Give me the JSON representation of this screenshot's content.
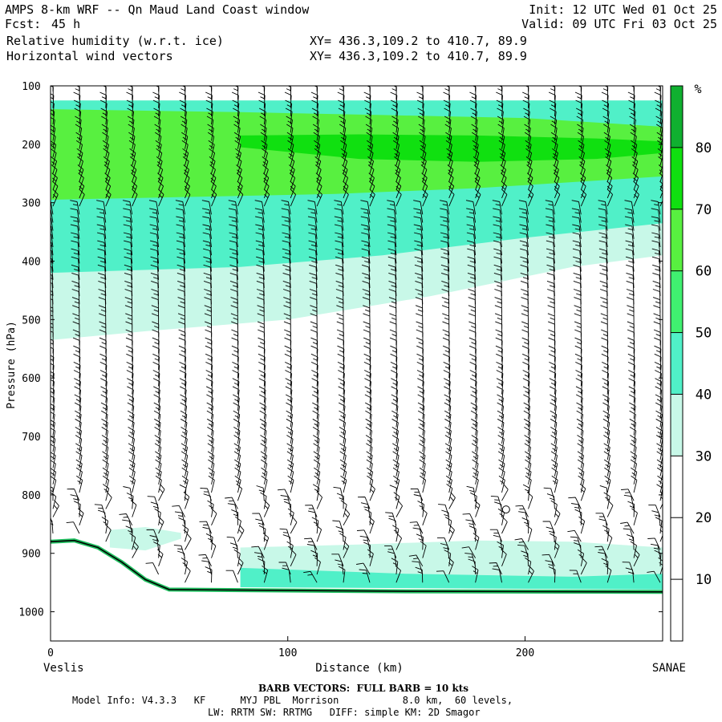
{
  "header": {
    "model_window": "AMPS 8-km WRF -- Qn Maud Land Coast window",
    "fcst_label": "Fcst:",
    "fcst_value": "45 h",
    "init": "Init: 12 UTC Wed 01 Oct 25",
    "valid": "Valid: 09 UTC Fri 03 Oct 25",
    "field1": "Relative humidity (w.r.t. ice)",
    "field2": "Horizontal wind vectors",
    "xy1": "XY= 436.3,109.2 to 410.7, 89.9",
    "xy2": "XY= 436.3,109.2 to 410.7, 89.9"
  },
  "footer": {
    "barb_note": "BARB VECTORS:  FULL BARB = 10 kts",
    "model_info": "Model Info: V4.3.3   KF      MYJ PBL  Morrison           8.0 km,  60 levels,",
    "physics": "LW: RRTM SW: RRTMG   DIFF: simple KM: 2D Smagor"
  },
  "chart_data": {
    "type": "heatmap",
    "xlabel": "Distance (km)",
    "ylabel": "Pressure (hPa)",
    "xlim": [
      0,
      258
    ],
    "ylim": [
      1050,
      100
    ],
    "x_ticks": [
      0,
      100,
      200
    ],
    "y_ticks": [
      100,
      200,
      300,
      400,
      500,
      600,
      700,
      800,
      900,
      1000
    ],
    "left_endpoint": "Veslis",
    "right_endpoint": "SANAE",
    "colorbar": {
      "unit": "%",
      "levels": [
        10,
        20,
        30,
        40,
        50,
        60,
        70,
        80
      ],
      "colors": [
        "#ffffff",
        "#ffffff",
        "#ffffff",
        "#c8f8e8",
        "#50f0c8",
        "#40f070",
        "#58f040",
        "#10e010",
        "#10b030"
      ]
    },
    "rh_bands": [
      {
        "rh_min": 30,
        "color": "#c8f8e8",
        "top": [
          [
            0,
            125
          ],
          [
            258,
            125
          ]
        ],
        "bottom": [
          [
            0,
            535
          ],
          [
            40,
            520
          ],
          [
            100,
            500
          ],
          [
            160,
            460
          ],
          [
            220,
            410
          ],
          [
            258,
            390
          ]
        ]
      },
      {
        "rh_min": 40,
        "color": "#50f0c8",
        "top": [
          [
            0,
            125
          ],
          [
            258,
            125
          ]
        ],
        "bottom": [
          [
            0,
            420
          ],
          [
            80,
            410
          ],
          [
            140,
            390
          ],
          [
            200,
            360
          ],
          [
            258,
            335
          ]
        ]
      },
      {
        "rh_min": 60,
        "color": "#58f040",
        "top": [
          [
            0,
            140
          ],
          [
            80,
            145
          ],
          [
            140,
            150
          ],
          [
            200,
            155
          ],
          [
            258,
            170
          ]
        ],
        "bottom": [
          [
            0,
            295
          ],
          [
            60,
            290
          ],
          [
            120,
            285
          ],
          [
            180,
            275
          ],
          [
            258,
            255
          ]
        ]
      },
      {
        "rh_min": 70,
        "color": "#10e010",
        "top": [
          [
            80,
            185
          ],
          [
            130,
            183
          ],
          [
            180,
            185
          ],
          [
            230,
            190
          ],
          [
            258,
            195
          ]
        ],
        "bottom": [
          [
            80,
            205
          ],
          [
            130,
            225
          ],
          [
            180,
            230
          ],
          [
            230,
            225
          ],
          [
            258,
            215
          ]
        ]
      },
      {
        "rh_min": 30,
        "color": "#c8f8e8",
        "top": [
          [
            80,
            890
          ],
          [
            130,
            885
          ],
          [
            180,
            878
          ],
          [
            220,
            880
          ],
          [
            258,
            890
          ]
        ],
        "bottom": [
          [
            80,
            950
          ],
          [
            258,
            955
          ]
        ]
      },
      {
        "rh_min": 40,
        "color": "#50f0c8",
        "top": [
          [
            80,
            925
          ],
          [
            150,
            935
          ],
          [
            220,
            940
          ],
          [
            258,
            935
          ]
        ],
        "bottom": [
          [
            80,
            958
          ],
          [
            258,
            962
          ]
        ]
      },
      {
        "rh_min": 30,
        "color": "#c8f8e8",
        "top": [
          [
            25,
            860
          ],
          [
            40,
            855
          ],
          [
            55,
            865
          ]
        ],
        "bottom": [
          [
            25,
            890
          ],
          [
            40,
            895
          ],
          [
            55,
            875
          ]
        ]
      }
    ],
    "terrain_pressure": [
      [
        0,
        880
      ],
      [
        10,
        878
      ],
      [
        20,
        890
      ],
      [
        30,
        915
      ],
      [
        40,
        945
      ],
      [
        50,
        962
      ],
      [
        80,
        963
      ],
      [
        150,
        965
      ],
      [
        258,
        966
      ]
    ],
    "annotation_circle": {
      "distance_km": 192,
      "pressure_hpa": 825
    }
  }
}
